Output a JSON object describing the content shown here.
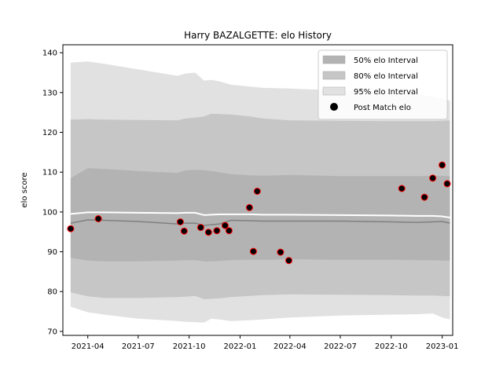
{
  "chart_data": {
    "type": "area",
    "title": "Harry BAZALGETTE: elo History",
    "xlabel": "",
    "ylabel": "elo score",
    "xlim": [
      "2021-02-15",
      "2023-01-20"
    ],
    "ylim": [
      69,
      142
    ],
    "x_ticks": [
      "2021-04",
      "2021-07",
      "2021-10",
      "2022-01",
      "2022-04",
      "2022-07",
      "2022-10",
      "2023-01"
    ],
    "y_ticks": [
      70,
      80,
      90,
      100,
      110,
      120,
      130,
      140
    ],
    "grid": false,
    "legend_position": "top-right",
    "legend": [
      "50% elo Interval",
      "80% elo Interval",
      "95% elo Interval",
      "Post Match elo"
    ],
    "colors": {
      "band50": "#b3b3b3",
      "band80": "#c6c6c6",
      "band95": "#e1e1e1",
      "median_line": "#808080",
      "mean_line": "#ffffff",
      "marker_fill": "#000000",
      "marker_edge": "#ff0000"
    },
    "bands": {
      "x": [
        "2021-03-01",
        "2021-04-01",
        "2021-05-01",
        "2021-07-01",
        "2021-09-10",
        "2021-09-25",
        "2021-10-12",
        "2021-10-28",
        "2021-11-10",
        "2021-11-25",
        "2021-12-15",
        "2022-01-20",
        "2022-02-10",
        "2022-04-01",
        "2022-07-01",
        "2022-10-01",
        "2022-11-15",
        "2022-12-15",
        "2023-01-01",
        "2023-01-15"
      ],
      "band95_upper": [
        137.5,
        137.8,
        137.2,
        135.8,
        134.2,
        134.8,
        135.0,
        133.0,
        133.2,
        132.8,
        132.0,
        131.5,
        131.2,
        131.0,
        130.5,
        130.0,
        129.5,
        129.0,
        128.5,
        128.0
      ],
      "band95_lower": [
        76.2,
        74.8,
        74.2,
        73.2,
        72.6,
        72.4,
        72.3,
        72.2,
        73.2,
        73.0,
        72.6,
        72.8,
        73.0,
        73.5,
        74.0,
        74.2,
        74.3,
        74.5,
        73.5,
        73.0
      ],
      "band80_upper": [
        123.2,
        123.3,
        123.2,
        123.1,
        123.0,
        123.5,
        123.7,
        124.0,
        124.7,
        124.6,
        124.5,
        124.0,
        123.5,
        123.0,
        122.9,
        122.8,
        122.8,
        122.8,
        122.9,
        123.0
      ],
      "band80_lower": [
        79.8,
        78.8,
        78.4,
        78.4,
        78.6,
        78.7,
        78.9,
        78.1,
        78.2,
        78.3,
        78.6,
        78.9,
        79.1,
        79.3,
        79.2,
        79.1,
        79.0,
        79.0,
        78.9,
        78.8
      ],
      "band50_upper": [
        108.5,
        111.0,
        110.8,
        110.3,
        109.8,
        110.5,
        110.6,
        110.5,
        110.3,
        110.0,
        109.5,
        109.2,
        109.1,
        109.3,
        109.0,
        109.0,
        109.0,
        109.1,
        109.1,
        109.0
      ],
      "band50_lower": [
        88.5,
        87.8,
        87.6,
        87.6,
        87.8,
        87.9,
        87.9,
        87.6,
        87.6,
        87.7,
        87.9,
        88.0,
        88.0,
        88.1,
        88.0,
        88.0,
        87.9,
        87.9,
        87.8,
        87.8
      ],
      "median": [
        97.2,
        98.0,
        97.9,
        97.6,
        97.0,
        97.2,
        97.2,
        96.6,
        96.8,
        97.0,
        97.9,
        97.8,
        97.7,
        97.7,
        97.7,
        97.5,
        97.4,
        97.5,
        97.6,
        97.2
      ],
      "mean": [
        99.5,
        99.9,
        99.9,
        99.8,
        99.7,
        99.8,
        99.8,
        99.2,
        99.3,
        99.4,
        99.4,
        99.4,
        99.3,
        99.3,
        99.2,
        99.1,
        99.0,
        99.0,
        98.9,
        98.6
      ]
    },
    "points": {
      "x": [
        "2021-03-01",
        "2021-04-20",
        "2021-09-15",
        "2021-09-22",
        "2021-10-22",
        "2021-11-05",
        "2021-11-20",
        "2021-12-05",
        "2021-12-12",
        "2022-01-18",
        "2022-01-25",
        "2022-02-01",
        "2022-03-15",
        "2022-03-30",
        "2022-10-20",
        "2022-11-30",
        "2022-12-15",
        "2023-01-01",
        "2023-01-10"
      ],
      "y": [
        95.8,
        98.3,
        97.5,
        95.2,
        96.1,
        94.9,
        95.3,
        96.6,
        95.3,
        101.1,
        90.1,
        105.2,
        89.9,
        87.8,
        105.9,
        103.7,
        108.5,
        111.8,
        107.1
      ]
    }
  }
}
